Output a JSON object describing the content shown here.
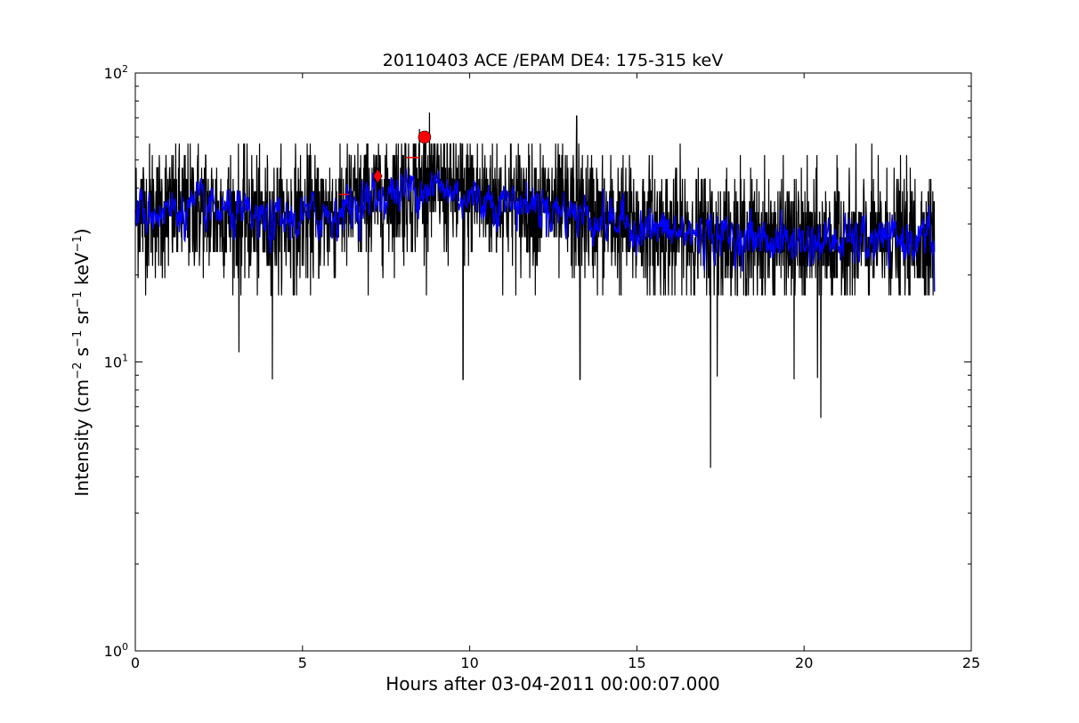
{
  "chart_data": {
    "type": "line",
    "title": "20110403 ACE /EPAM DE4: 175-315 keV",
    "xlabel": "Hours after 03-04-2011 00:00:07.000",
    "ylabel": {
      "parts": [
        "Intensity (cm",
        "−2",
        " s",
        "−1",
        " sr",
        "−1",
        " keV",
        "−1",
        ")"
      ]
    },
    "xlim": [
      0,
      25
    ],
    "ylim": [
      1,
      100
    ],
    "yscale": "log",
    "x_ticks": [
      "0",
      "5",
      "10",
      "15",
      "20",
      "25"
    ],
    "x_tick_values": [
      0,
      5,
      10,
      15,
      20,
      25
    ],
    "y_ticks": [
      {
        "value": 1,
        "base": "10",
        "exp": "0"
      },
      {
        "value": 10,
        "base": "10",
        "exp": "1"
      },
      {
        "value": 100,
        "base": "10",
        "exp": "2"
      }
    ],
    "grid": false,
    "series": [
      {
        "color": "#000000",
        "style": "raw",
        "x_range": [
          0,
          23.9
        ],
        "typical_range": [
          20,
          50
        ],
        "notable_spikes": [
          {
            "x": 3.1,
            "y": 10.8
          },
          {
            "x": 4.1,
            "y": 8.7
          },
          {
            "x": 9.8,
            "y": 8.7
          },
          {
            "x": 13.3,
            "y": 8.7
          },
          {
            "x": 17.2,
            "y": 4.3
          },
          {
            "x": 17.4,
            "y": 8.9
          },
          {
            "x": 19.7,
            "y": 8.7
          },
          {
            "x": 20.4,
            "y": 8.8
          },
          {
            "x": 20.5,
            "y": 6.4
          },
          {
            "x": 8.8,
            "y": 73
          },
          {
            "x": 13.2,
            "y": 71
          },
          {
            "x": 8.5,
            "y": 64
          }
        ]
      },
      {
        "color": "#0000ff",
        "style": "smoothed",
        "x_range": [
          0,
          23.9
        ],
        "trend_points": [
          {
            "x": 0,
            "y": 33
          },
          {
            "x": 2,
            "y": 34
          },
          {
            "x": 4,
            "y": 30
          },
          {
            "x": 6,
            "y": 33
          },
          {
            "x": 7.5,
            "y": 38
          },
          {
            "x": 8.7,
            "y": 41
          },
          {
            "x": 10,
            "y": 37
          },
          {
            "x": 12,
            "y": 35
          },
          {
            "x": 14,
            "y": 31
          },
          {
            "x": 16,
            "y": 28
          },
          {
            "x": 18,
            "y": 27
          },
          {
            "x": 20,
            "y": 26
          },
          {
            "x": 22,
            "y": 26
          },
          {
            "x": 23.9,
            "y": 27
          }
        ]
      }
    ],
    "markers": [
      {
        "shape": "diamond",
        "color": "#ff0000",
        "x": 7.25,
        "y": 44
      },
      {
        "shape": "circle",
        "color": "#ff0000",
        "x": 8.65,
        "y": 60
      }
    ],
    "annotations": [
      {
        "color": "#ff0000",
        "type": "hline",
        "x0": 8.1,
        "x1": 8.5,
        "y": 51
      },
      {
        "color": "#ff0000",
        "type": "hline",
        "x0": 6.1,
        "x1": 6.4,
        "y": 38
      }
    ]
  }
}
